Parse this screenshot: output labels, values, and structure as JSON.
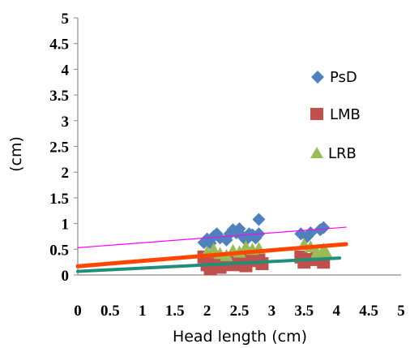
{
  "chart_data": {
    "type": "scatter",
    "title": "",
    "xlabel": "Head length (cm)",
    "ylabel": "(cm)",
    "xlim": [
      0,
      5
    ],
    "ylim": [
      0,
      5
    ],
    "x_ticks": [
      "0",
      "0.5",
      "1",
      "1.5",
      "2",
      "2.5",
      "3",
      "3.5",
      "4",
      "4.5",
      "5"
    ],
    "y_ticks": [
      "0",
      "0.5",
      "1",
      "1.5",
      "2",
      "2.5",
      "3",
      "3.5",
      "4",
      "4.5",
      "5"
    ],
    "grid": false,
    "legend": "right",
    "series": [
      {
        "name": "PsD",
        "marker": "diamond",
        "color": "#4f81bd",
        "points": [
          [
            1.95,
            0.63
          ],
          [
            2.0,
            0.7
          ],
          [
            2.05,
            0.62
          ],
          [
            2.1,
            0.75
          ],
          [
            2.15,
            0.8
          ],
          [
            2.2,
            0.72
          ],
          [
            2.3,
            0.68
          ],
          [
            2.35,
            0.8
          ],
          [
            2.4,
            0.88
          ],
          [
            2.45,
            0.82
          ],
          [
            2.5,
            0.9
          ],
          [
            2.55,
            0.75
          ],
          [
            2.6,
            0.68
          ],
          [
            2.65,
            0.8
          ],
          [
            2.7,
            0.78
          ],
          [
            2.75,
            0.72
          ],
          [
            2.8,
            1.08
          ],
          [
            2.8,
            0.8
          ],
          [
            3.45,
            0.8
          ],
          [
            3.55,
            0.75
          ],
          [
            3.6,
            0.82
          ],
          [
            3.75,
            0.88
          ],
          [
            3.8,
            0.92
          ]
        ]
      },
      {
        "name": "LMB",
        "marker": "square",
        "color": "#c0504d",
        "points": [
          [
            1.95,
            0.35
          ],
          [
            2.0,
            0.2
          ],
          [
            2.05,
            0.12
          ],
          [
            2.1,
            0.3
          ],
          [
            2.2,
            0.15
          ],
          [
            2.3,
            0.25
          ],
          [
            2.4,
            0.2
          ],
          [
            2.5,
            0.32
          ],
          [
            2.6,
            0.18
          ],
          [
            2.7,
            0.28
          ],
          [
            2.8,
            0.3
          ],
          [
            2.85,
            0.22
          ],
          [
            3.45,
            0.35
          ],
          [
            3.5,
            0.25
          ],
          [
            3.6,
            0.3
          ],
          [
            3.7,
            0.32
          ],
          [
            3.8,
            0.25
          ]
        ]
      },
      {
        "name": "LRB",
        "marker": "triangle",
        "color": "#9bbb59",
        "points": [
          [
            2.0,
            0.45
          ],
          [
            2.1,
            0.5
          ],
          [
            2.2,
            0.42
          ],
          [
            2.3,
            0.38
          ],
          [
            2.4,
            0.48
          ],
          [
            2.5,
            0.45
          ],
          [
            2.6,
            0.55
          ],
          [
            2.7,
            0.5
          ],
          [
            2.8,
            0.52
          ],
          [
            3.5,
            0.6
          ],
          [
            3.6,
            0.55
          ],
          [
            3.7,
            0.45
          ],
          [
            3.8,
            0.5
          ],
          [
            3.85,
            0.42
          ]
        ]
      }
    ],
    "trendlines": [
      {
        "color": "#ff00ff",
        "width": 1.2,
        "from": [
          0,
          0.53
        ],
        "to": [
          4.15,
          0.93
        ]
      },
      {
        "color": "#ff4500",
        "width": 5,
        "from": [
          0,
          0.17
        ],
        "to": [
          4.15,
          0.6
        ]
      },
      {
        "color": "#1f8f7a",
        "width": 4,
        "from": [
          0,
          0.07
        ],
        "to": [
          4.05,
          0.33
        ]
      }
    ]
  }
}
